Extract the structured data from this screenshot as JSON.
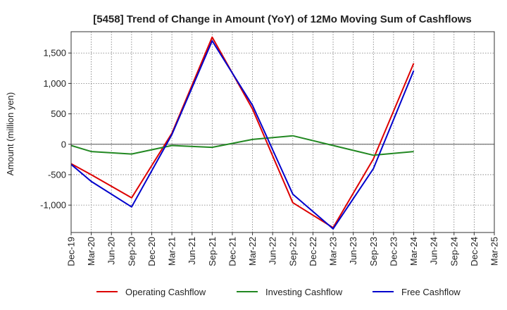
{
  "chart_data": {
    "type": "line",
    "title": "[5458]  Trend of Change in Amount (YoY) of 12Mo Moving Sum of Cashflows",
    "xlabel": "",
    "ylabel": "Amount (million yen)",
    "ylim": [
      -1450,
      1850
    ],
    "yticks": [
      -1000,
      -500,
      0,
      500,
      1000,
      1500
    ],
    "ytick_labels": [
      "-1,000",
      "-500",
      "0",
      "500",
      "1,000",
      "1,500"
    ],
    "categories": [
      "Dec-19",
      "Mar-20",
      "Jun-20",
      "Sep-20",
      "Dec-20",
      "Mar-21",
      "Jun-21",
      "Sep-21",
      "Dec-21",
      "Mar-22",
      "Jun-22",
      "Sep-22",
      "Dec-22",
      "Mar-23",
      "Jun-23",
      "Sep-23",
      "Dec-23",
      "Mar-24",
      "Jun-24",
      "Sep-24",
      "Dec-24",
      "Mar-25"
    ],
    "grid": true,
    "legend_position": "bottom",
    "series": [
      {
        "name": "Operating Cashflow",
        "color": "#dd0000",
        "values": [
          -320,
          -500,
          null,
          -880,
          null,
          180,
          null,
          1760,
          null,
          580,
          null,
          -960,
          null,
          -1370,
          null,
          -240,
          null,
          1330,
          null,
          null,
          null,
          null
        ]
      },
      {
        "name": "Investing Cashflow",
        "color": "#228822",
        "values": [
          -20,
          -120,
          null,
          -160,
          null,
          -20,
          null,
          -50,
          null,
          80,
          null,
          140,
          null,
          -20,
          null,
          -180,
          null,
          -120,
          null,
          null,
          null,
          null
        ]
      },
      {
        "name": "Free Cashflow",
        "color": "#0000cc",
        "values": [
          -330,
          -610,
          null,
          -1030,
          null,
          160,
          null,
          1700,
          null,
          640,
          null,
          -820,
          null,
          -1390,
          null,
          -400,
          null,
          1210,
          null,
          null,
          null,
          null
        ]
      }
    ]
  }
}
